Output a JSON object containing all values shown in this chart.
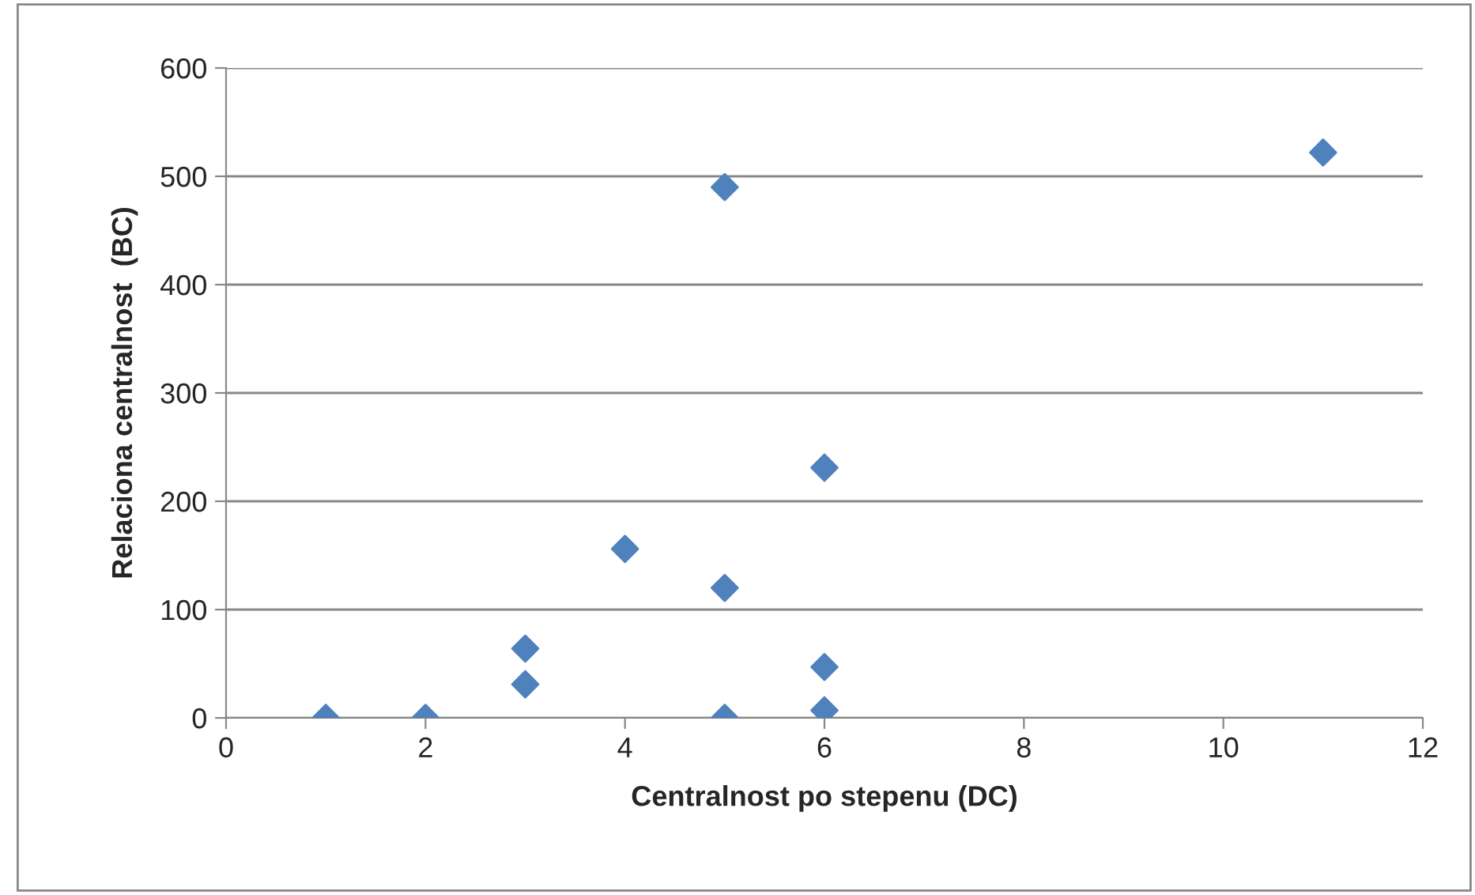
{
  "chart_data": {
    "type": "scatter",
    "xlabel": "Centralnost po stepenu (DC)",
    "ylabel": "Relaciona centralnost  (BC)",
    "x": [
      1,
      2,
      3,
      3,
      4,
      5,
      5,
      5,
      6,
      6,
      6,
      11
    ],
    "series": [
      {
        "color": "#4f81bd",
        "values": [
          0,
          0,
          64,
          31,
          156,
          490,
          120,
          0,
          231,
          47,
          7,
          522
        ]
      }
    ],
    "xlim": [
      0,
      12
    ],
    "xticks": [
      0,
      2,
      4,
      6,
      8,
      10,
      12
    ],
    "ylim": [
      0,
      600
    ],
    "yticks": [
      0,
      100,
      200,
      300,
      400,
      500,
      600
    ],
    "grid": "y",
    "marker": "diamond"
  }
}
